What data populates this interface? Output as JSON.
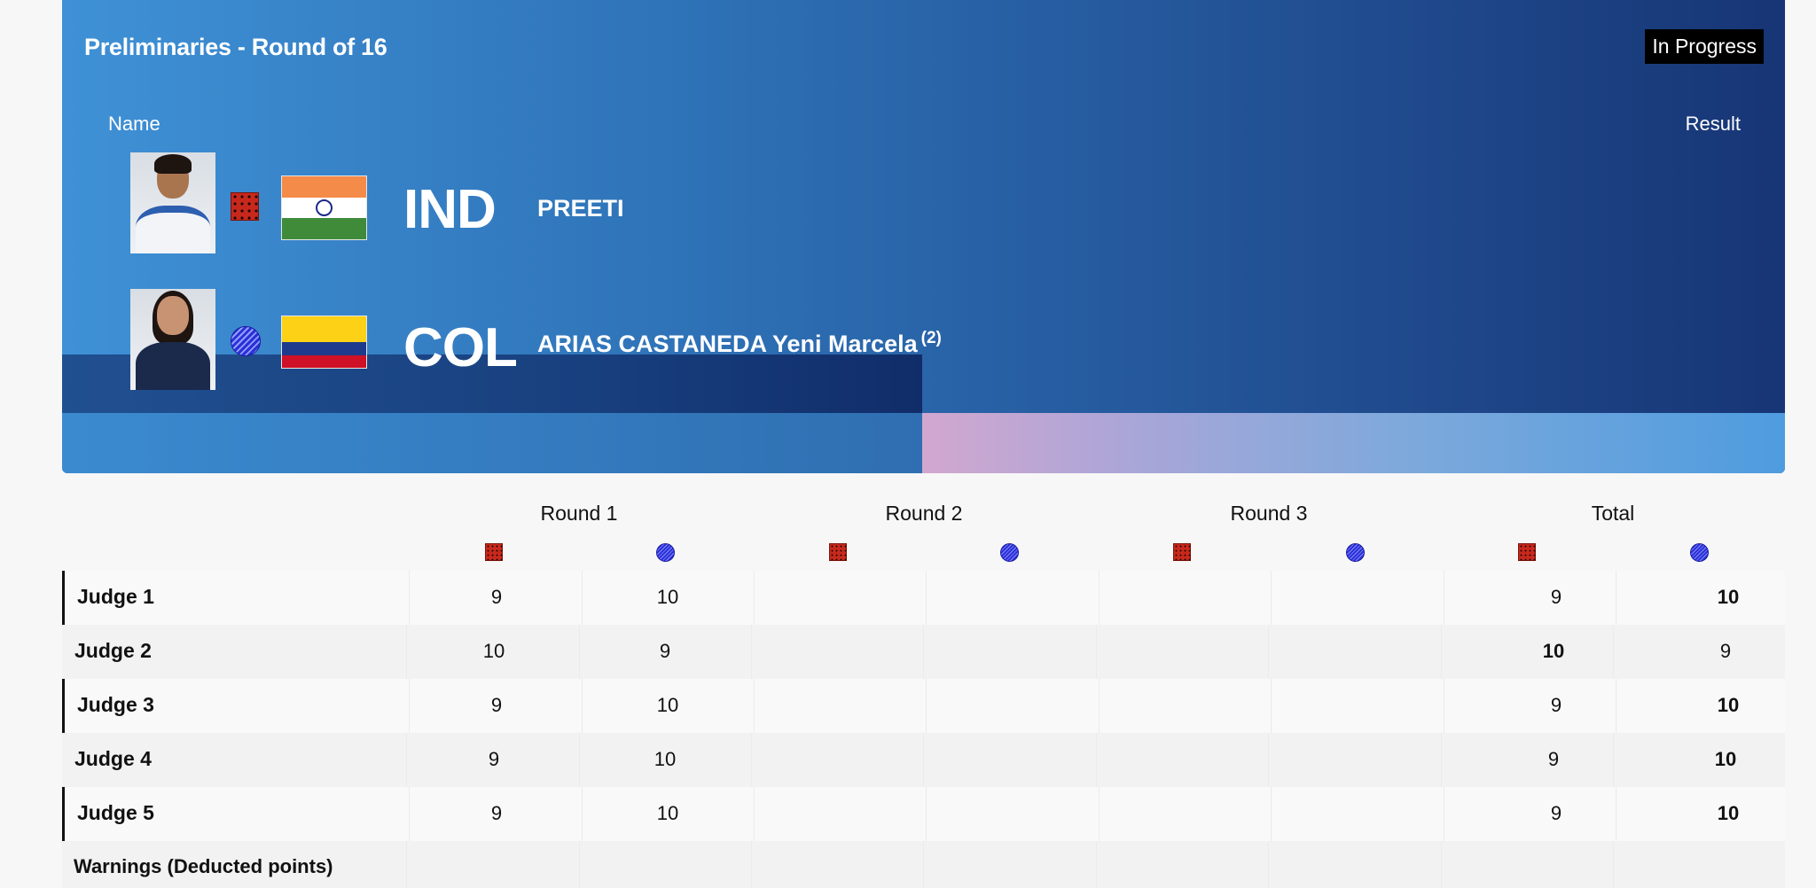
{
  "header": {
    "title": "Preliminaries - Round of 16",
    "status": "In Progress",
    "name_header": "Name",
    "result_header": "Result"
  },
  "athletes": [
    {
      "corner": "red",
      "noc": "IND",
      "name": "PREETI",
      "seed": "",
      "flag": "India"
    },
    {
      "corner": "blue",
      "noc": "COL",
      "name": "ARIAS CASTANEDA Yeni Marcela",
      "seed": "(2)",
      "flag": "Colombia"
    }
  ],
  "colors": {
    "red_corner": "#c8281c",
    "blue_corner": "#2d2fd6",
    "panel_dark": "#173575",
    "panel_light": "#3f91d6"
  },
  "table": {
    "rounds": [
      "Round 1",
      "Round 2",
      "Round 3",
      "Total"
    ],
    "rows": [
      {
        "label": "Judge 1",
        "r1_red": "9",
        "r1_blue": "10",
        "total_red": "9",
        "total_blue": "10",
        "winner": "blue"
      },
      {
        "label": "Judge 2",
        "r1_red": "10",
        "r1_blue": "9",
        "total_red": "10",
        "total_blue": "9",
        "winner": "red"
      },
      {
        "label": "Judge 3",
        "r1_red": "9",
        "r1_blue": "10",
        "total_red": "9",
        "total_blue": "10",
        "winner": "blue"
      },
      {
        "label": "Judge 4",
        "r1_red": "9",
        "r1_blue": "10",
        "total_red": "9",
        "total_blue": "10",
        "winner": "blue"
      },
      {
        "label": "Judge 5",
        "r1_red": "9",
        "r1_blue": "10",
        "total_red": "9",
        "total_blue": "10",
        "winner": "blue"
      }
    ],
    "warnings_label": "Warnings (Deducted points)"
  }
}
